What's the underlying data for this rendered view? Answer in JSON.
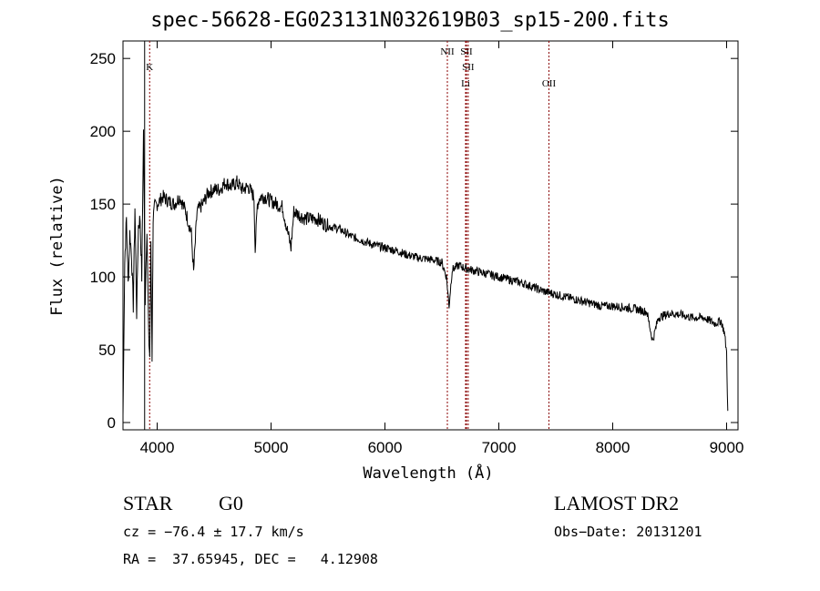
{
  "chart_data": {
    "type": "line",
    "title": "spec-56628-EG023131N032619B03_sp15-200.fits",
    "xlabel": "Wavelength (Å)",
    "ylabel": "Flux (relative)",
    "xlim": [
      3700,
      9100
    ],
    "ylim": [
      -5,
      262
    ],
    "xticks": [
      4000,
      5000,
      6000,
      7000,
      8000,
      9000
    ],
    "yticks": [
      0,
      50,
      100,
      150,
      200,
      250
    ],
    "series": [
      {
        "x": [
          3700,
          3715,
          3730,
          3745,
          3760,
          3775,
          3790,
          3805,
          3820,
          3835,
          3850,
          3865,
          3880,
          3895,
          3910,
          3925,
          3935,
          3945,
          3955,
          3965,
          3980,
          4000,
          4050,
          4100,
          4150,
          4200,
          4250,
          4300,
          4320,
          4350,
          4400,
          4450,
          4500,
          4550,
          4600,
          4650,
          4700,
          4750,
          4800,
          4850,
          4861,
          4880,
          4900,
          4950,
          5000,
          5100,
          5175,
          5200,
          5300,
          5400,
          5500,
          5600,
          5700,
          5800,
          5900,
          6000,
          6100,
          6200,
          6300,
          6400,
          6500,
          6540,
          6563,
          6590,
          6650,
          6700,
          6800,
          6900,
          7000,
          7100,
          7200,
          7300,
          7400,
          7500,
          7600,
          7700,
          7800,
          7900,
          8000,
          8100,
          8200,
          8300,
          8350,
          8400,
          8500,
          8600,
          8700,
          8800,
          8900,
          8950,
          8980,
          9000,
          9010
        ],
        "y": [
          5,
          110,
          140,
          95,
          130,
          115,
          80,
          148,
          75,
          135,
          140,
          100,
          200,
          85,
          135,
          60,
          45,
          125,
          45,
          140,
          148,
          150,
          155,
          152,
          150,
          155,
          145,
          130,
          103,
          145,
          150,
          158,
          160,
          160,
          165,
          162,
          165,
          160,
          162,
          155,
          118,
          150,
          155,
          155,
          152,
          148,
          120,
          145,
          140,
          140,
          135,
          133,
          128,
          125,
          122,
          120,
          118,
          115,
          113,
          112,
          110,
          100,
          80,
          105,
          108,
          106,
          104,
          102,
          100,
          98,
          96,
          93,
          90,
          88,
          86,
          84,
          82,
          80,
          80,
          79,
          78,
          76,
          56,
          72,
          75,
          74,
          72,
          72,
          68,
          70,
          62,
          48,
          8
        ]
      }
    ],
    "lines": [
      {
        "x": 3934,
        "label": "K"
      },
      {
        "x": 6548,
        "label": "NII"
      },
      {
        "x": 6716,
        "label": "SII"
      },
      {
        "x": 6731,
        "label": "SII"
      },
      {
        "x": 6708,
        "label": "Li"
      },
      {
        "x": 7440,
        "label": "OII"
      }
    ],
    "black_line_x": 3890
  },
  "info": {
    "type": "STAR",
    "subclass": "G0",
    "survey": "LAMOST DR2",
    "cz": "cz = −76.4 ± 17.7 km/s",
    "obs_date": "Obs−Date: 20131201",
    "radec": "RA =  37.65945, DEC =   4.12908"
  }
}
